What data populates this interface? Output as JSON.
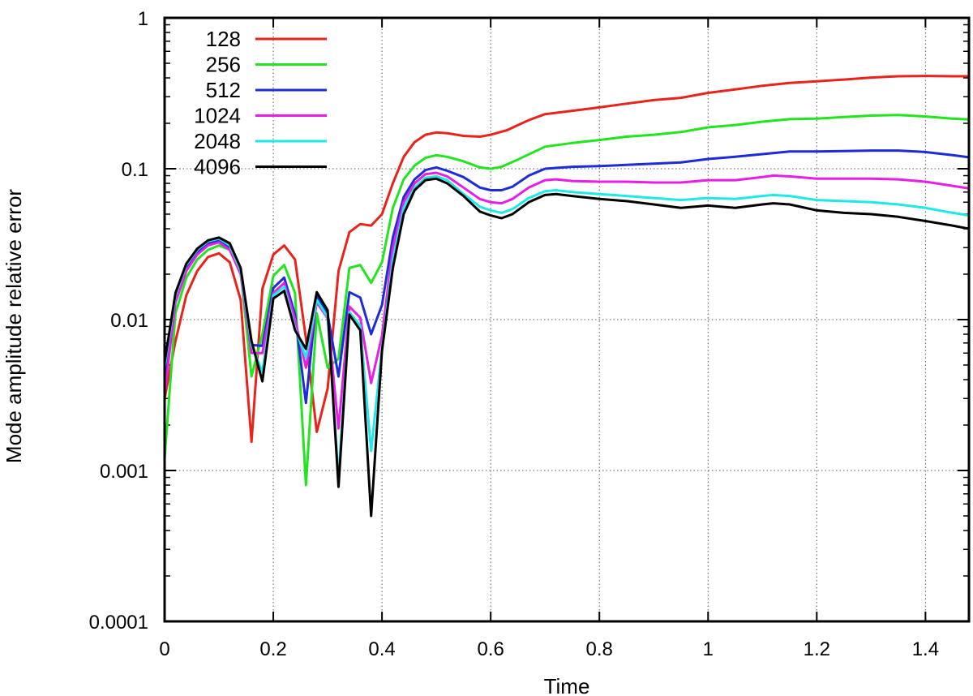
{
  "chart_data": {
    "type": "line",
    "title": "",
    "xlabel": "Time",
    "ylabel": "Mode amplitude relative error",
    "xlim": [
      0,
      1.48
    ],
    "ylim": [
      0.0001,
      1
    ],
    "yscale": "log",
    "grid": true,
    "legend_position": "top-left",
    "x_ticks": [
      0,
      0.2,
      0.4,
      0.6,
      0.8,
      1,
      1.2,
      1.4
    ],
    "x_tick_labels": [
      "0",
      "0.2",
      "0.4",
      "0.6",
      "0.8",
      "1",
      "1.2",
      "1.4"
    ],
    "y_ticks": [
      0.0001,
      0.001,
      0.01,
      0.1,
      1
    ],
    "y_tick_labels": [
      "0.0001",
      "0.001",
      "0.01",
      "0.1",
      "1"
    ],
    "series": [
      {
        "name": "128",
        "color": "#e8231b",
        "points": [
          [
            0,
            0.003
          ],
          [
            0.02,
            0.0072
          ],
          [
            0.04,
            0.0145
          ],
          [
            0.06,
            0.021
          ],
          [
            0.08,
            0.026
          ],
          [
            0.1,
            0.0275
          ],
          [
            0.12,
            0.024
          ],
          [
            0.14,
            0.0135
          ],
          [
            0.16,
            0.00155
          ],
          [
            0.18,
            0.016
          ],
          [
            0.2,
            0.027
          ],
          [
            0.22,
            0.031
          ],
          [
            0.24,
            0.025
          ],
          [
            0.26,
            0.0075
          ],
          [
            0.28,
            0.0018
          ],
          [
            0.3,
            0.0035
          ],
          [
            0.32,
            0.021
          ],
          [
            0.34,
            0.038
          ],
          [
            0.36,
            0.043
          ],
          [
            0.38,
            0.042
          ],
          [
            0.4,
            0.05
          ],
          [
            0.42,
            0.08
          ],
          [
            0.44,
            0.12
          ],
          [
            0.46,
            0.15
          ],
          [
            0.48,
            0.168
          ],
          [
            0.5,
            0.174
          ],
          [
            0.52,
            0.172
          ],
          [
            0.55,
            0.165
          ],
          [
            0.58,
            0.163
          ],
          [
            0.6,
            0.168
          ],
          [
            0.63,
            0.18
          ],
          [
            0.67,
            0.21
          ],
          [
            0.7,
            0.23
          ],
          [
            0.75,
            0.242
          ],
          [
            0.8,
            0.255
          ],
          [
            0.85,
            0.27
          ],
          [
            0.9,
            0.285
          ],
          [
            0.95,
            0.295
          ],
          [
            1.0,
            0.318
          ],
          [
            1.05,
            0.335
          ],
          [
            1.1,
            0.355
          ],
          [
            1.15,
            0.37
          ],
          [
            1.2,
            0.38
          ],
          [
            1.25,
            0.39
          ],
          [
            1.3,
            0.402
          ],
          [
            1.35,
            0.41
          ],
          [
            1.4,
            0.412
          ],
          [
            1.45,
            0.41
          ],
          [
            1.48,
            0.41
          ]
        ]
      },
      {
        "name": "256",
        "color": "#22e51f",
        "points": [
          [
            0,
            0.0012
          ],
          [
            0.02,
            0.011
          ],
          [
            0.04,
            0.019
          ],
          [
            0.06,
            0.025
          ],
          [
            0.08,
            0.029
          ],
          [
            0.1,
            0.031
          ],
          [
            0.12,
            0.029
          ],
          [
            0.14,
            0.021
          ],
          [
            0.16,
            0.0042
          ],
          [
            0.18,
            0.008
          ],
          [
            0.2,
            0.0195
          ],
          [
            0.22,
            0.023
          ],
          [
            0.24,
            0.015
          ],
          [
            0.26,
            0.0008
          ],
          [
            0.28,
            0.011
          ],
          [
            0.3,
            0.0048
          ],
          [
            0.32,
            0.0055
          ],
          [
            0.34,
            0.022
          ],
          [
            0.36,
            0.023
          ],
          [
            0.38,
            0.0175
          ],
          [
            0.4,
            0.024
          ],
          [
            0.42,
            0.055
          ],
          [
            0.44,
            0.085
          ],
          [
            0.46,
            0.105
          ],
          [
            0.48,
            0.118
          ],
          [
            0.5,
            0.123
          ],
          [
            0.52,
            0.12
          ],
          [
            0.55,
            0.112
          ],
          [
            0.58,
            0.102
          ],
          [
            0.6,
            0.1
          ],
          [
            0.62,
            0.103
          ],
          [
            0.65,
            0.115
          ],
          [
            0.7,
            0.14
          ],
          [
            0.75,
            0.148
          ],
          [
            0.8,
            0.155
          ],
          [
            0.85,
            0.163
          ],
          [
            0.9,
            0.168
          ],
          [
            0.95,
            0.175
          ],
          [
            1.0,
            0.188
          ],
          [
            1.05,
            0.195
          ],
          [
            1.1,
            0.205
          ],
          [
            1.15,
            0.213
          ],
          [
            1.2,
            0.215
          ],
          [
            1.25,
            0.22
          ],
          [
            1.3,
            0.225
          ],
          [
            1.35,
            0.227
          ],
          [
            1.4,
            0.222
          ],
          [
            1.45,
            0.215
          ],
          [
            1.48,
            0.212
          ]
        ]
      },
      {
        "name": "512",
        "color": "#1d2bd8",
        "points": [
          [
            0,
            0.0038
          ],
          [
            0.02,
            0.014
          ],
          [
            0.04,
            0.022
          ],
          [
            0.06,
            0.028
          ],
          [
            0.08,
            0.032
          ],
          [
            0.1,
            0.0335
          ],
          [
            0.12,
            0.03
          ],
          [
            0.14,
            0.021
          ],
          [
            0.16,
            0.0068
          ],
          [
            0.18,
            0.0067
          ],
          [
            0.2,
            0.0162
          ],
          [
            0.22,
            0.019
          ],
          [
            0.24,
            0.0108
          ],
          [
            0.26,
            0.0028
          ],
          [
            0.28,
            0.0145
          ],
          [
            0.3,
            0.0108
          ],
          [
            0.32,
            0.0042
          ],
          [
            0.34,
            0.0152
          ],
          [
            0.36,
            0.014
          ],
          [
            0.38,
            0.008
          ],
          [
            0.4,
            0.0125
          ],
          [
            0.42,
            0.035
          ],
          [
            0.44,
            0.065
          ],
          [
            0.46,
            0.085
          ],
          [
            0.48,
            0.098
          ],
          [
            0.5,
            0.102
          ],
          [
            0.52,
            0.097
          ],
          [
            0.55,
            0.088
          ],
          [
            0.58,
            0.075
          ],
          [
            0.6,
            0.072
          ],
          [
            0.62,
            0.072
          ],
          [
            0.64,
            0.076
          ],
          [
            0.67,
            0.09
          ],
          [
            0.7,
            0.1
          ],
          [
            0.75,
            0.103
          ],
          [
            0.8,
            0.104
          ],
          [
            0.85,
            0.106
          ],
          [
            0.9,
            0.108
          ],
          [
            0.95,
            0.11
          ],
          [
            1.0,
            0.116
          ],
          [
            1.05,
            0.12
          ],
          [
            1.1,
            0.125
          ],
          [
            1.15,
            0.13
          ],
          [
            1.2,
            0.13
          ],
          [
            1.25,
            0.131
          ],
          [
            1.3,
            0.132
          ],
          [
            1.35,
            0.132
          ],
          [
            1.4,
            0.129
          ],
          [
            1.45,
            0.123
          ],
          [
            1.48,
            0.119
          ]
        ]
      },
      {
        "name": "1024",
        "color": "#e81ee5",
        "points": [
          [
            0,
            0.0032
          ],
          [
            0.02,
            0.013
          ],
          [
            0.04,
            0.021
          ],
          [
            0.06,
            0.027
          ],
          [
            0.08,
            0.031
          ],
          [
            0.1,
            0.0325
          ],
          [
            0.12,
            0.029
          ],
          [
            0.14,
            0.02
          ],
          [
            0.16,
            0.006
          ],
          [
            0.18,
            0.006
          ],
          [
            0.2,
            0.015
          ],
          [
            0.22,
            0.0175
          ],
          [
            0.24,
            0.01
          ],
          [
            0.26,
            0.0048
          ],
          [
            0.28,
            0.013
          ],
          [
            0.3,
            0.0102
          ],
          [
            0.32,
            0.0019
          ],
          [
            0.34,
            0.0122
          ],
          [
            0.36,
            0.0103
          ],
          [
            0.38,
            0.0038
          ],
          [
            0.4,
            0.0078
          ],
          [
            0.42,
            0.03
          ],
          [
            0.44,
            0.06
          ],
          [
            0.46,
            0.08
          ],
          [
            0.48,
            0.092
          ],
          [
            0.5,
            0.094
          ],
          [
            0.52,
            0.089
          ],
          [
            0.55,
            0.075
          ],
          [
            0.58,
            0.063
          ],
          [
            0.6,
            0.06
          ],
          [
            0.62,
            0.059
          ],
          [
            0.64,
            0.063
          ],
          [
            0.67,
            0.075
          ],
          [
            0.7,
            0.084
          ],
          [
            0.72,
            0.085
          ],
          [
            0.75,
            0.083
          ],
          [
            0.8,
            0.082
          ],
          [
            0.85,
            0.082
          ],
          [
            0.9,
            0.081
          ],
          [
            0.95,
            0.081
          ],
          [
            1.0,
            0.084
          ],
          [
            1.05,
            0.084
          ],
          [
            1.1,
            0.088
          ],
          [
            1.12,
            0.09
          ],
          [
            1.15,
            0.089
          ],
          [
            1.2,
            0.086
          ],
          [
            1.25,
            0.086
          ],
          [
            1.3,
            0.086
          ],
          [
            1.35,
            0.085
          ],
          [
            1.4,
            0.082
          ],
          [
            1.45,
            0.077
          ],
          [
            1.48,
            0.074
          ]
        ]
      },
      {
        "name": "2048",
        "color": "#1fe8e8",
        "points": [
          [
            0,
            0.0048
          ],
          [
            0.02,
            0.0145
          ],
          [
            0.04,
            0.023
          ],
          [
            0.06,
            0.029
          ],
          [
            0.08,
            0.033
          ],
          [
            0.1,
            0.0345
          ],
          [
            0.12,
            0.031
          ],
          [
            0.14,
            0.021
          ],
          [
            0.16,
            0.0068
          ],
          [
            0.18,
            0.0045
          ],
          [
            0.2,
            0.0145
          ],
          [
            0.22,
            0.0165
          ],
          [
            0.24,
            0.0088
          ],
          [
            0.26,
            0.0056
          ],
          [
            0.28,
            0.0135
          ],
          [
            0.3,
            0.0104
          ],
          [
            0.32,
            0.0009
          ],
          [
            0.34,
            0.0112
          ],
          [
            0.36,
            0.0091
          ],
          [
            0.38,
            0.00135
          ],
          [
            0.4,
            0.0064
          ],
          [
            0.42,
            0.025
          ],
          [
            0.44,
            0.055
          ],
          [
            0.46,
            0.075
          ],
          [
            0.48,
            0.087
          ],
          [
            0.5,
            0.089
          ],
          [
            0.52,
            0.084
          ],
          [
            0.55,
            0.068
          ],
          [
            0.58,
            0.056
          ],
          [
            0.6,
            0.053
          ],
          [
            0.62,
            0.051
          ],
          [
            0.64,
            0.054
          ],
          [
            0.67,
            0.064
          ],
          [
            0.7,
            0.071
          ],
          [
            0.72,
            0.072
          ],
          [
            0.75,
            0.07
          ],
          [
            0.8,
            0.068
          ],
          [
            0.85,
            0.066
          ],
          [
            0.9,
            0.064
          ],
          [
            0.95,
            0.062
          ],
          [
            1.0,
            0.064
          ],
          [
            1.05,
            0.063
          ],
          [
            1.1,
            0.066
          ],
          [
            1.12,
            0.067
          ],
          [
            1.15,
            0.066
          ],
          [
            1.2,
            0.062
          ],
          [
            1.25,
            0.061
          ],
          [
            1.3,
            0.06
          ],
          [
            1.35,
            0.058
          ],
          [
            1.4,
            0.055
          ],
          [
            1.45,
            0.051
          ],
          [
            1.48,
            0.049
          ]
        ]
      },
      {
        "name": "4096",
        "color": "#000000",
        "points": [
          [
            0,
            0.0052
          ],
          [
            0.02,
            0.015
          ],
          [
            0.04,
            0.0235
          ],
          [
            0.06,
            0.0295
          ],
          [
            0.08,
            0.0335
          ],
          [
            0.1,
            0.035
          ],
          [
            0.12,
            0.032
          ],
          [
            0.14,
            0.022
          ],
          [
            0.16,
            0.0072
          ],
          [
            0.18,
            0.0039
          ],
          [
            0.2,
            0.0138
          ],
          [
            0.22,
            0.0155
          ],
          [
            0.24,
            0.0085
          ],
          [
            0.26,
            0.0064
          ],
          [
            0.28,
            0.0152
          ],
          [
            0.3,
            0.0115
          ],
          [
            0.32,
            0.00078
          ],
          [
            0.34,
            0.0108
          ],
          [
            0.36,
            0.0085
          ],
          [
            0.38,
            0.0005
          ],
          [
            0.4,
            0.0062
          ],
          [
            0.42,
            0.022
          ],
          [
            0.44,
            0.05
          ],
          [
            0.46,
            0.072
          ],
          [
            0.48,
            0.084
          ],
          [
            0.5,
            0.086
          ],
          [
            0.52,
            0.08
          ],
          [
            0.55,
            0.066
          ],
          [
            0.58,
            0.052
          ],
          [
            0.6,
            0.049
          ],
          [
            0.62,
            0.047
          ],
          [
            0.64,
            0.05
          ],
          [
            0.67,
            0.06
          ],
          [
            0.7,
            0.067
          ],
          [
            0.72,
            0.068
          ],
          [
            0.75,
            0.066
          ],
          [
            0.8,
            0.063
          ],
          [
            0.85,
            0.061
          ],
          [
            0.9,
            0.058
          ],
          [
            0.95,
            0.055
          ],
          [
            1.0,
            0.057
          ],
          [
            1.05,
            0.055
          ],
          [
            1.1,
            0.058
          ],
          [
            1.12,
            0.059
          ],
          [
            1.15,
            0.058
          ],
          [
            1.2,
            0.053
          ],
          [
            1.25,
            0.051
          ],
          [
            1.3,
            0.05
          ],
          [
            1.35,
            0.048
          ],
          [
            1.4,
            0.045
          ],
          [
            1.45,
            0.042
          ],
          [
            1.48,
            0.04
          ]
        ]
      }
    ]
  }
}
